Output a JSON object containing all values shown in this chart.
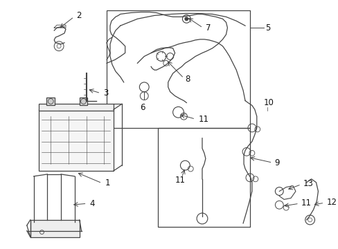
{
  "background_color": "#ffffff",
  "line_color": "#444444",
  "label_color": "#111111",
  "fig_width": 4.89,
  "fig_height": 3.6,
  "dpi": 100
}
